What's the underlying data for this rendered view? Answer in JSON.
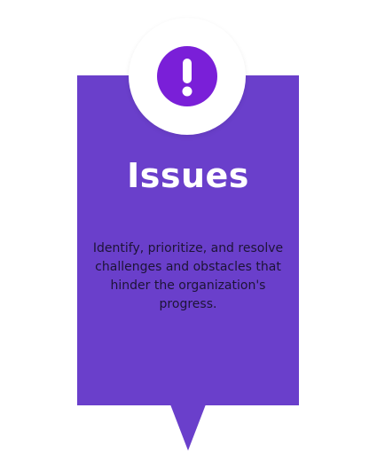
{
  "card": {
    "title": "Issues",
    "description": "Identify, prioritize, and resolve challenges and obstacles that hinder the organization's progress.",
    "icon": "exclamation-icon"
  },
  "colors": {
    "card_background": "#6a3fcb",
    "icon_background": "#7a1fd8",
    "title_text": "#ffffff",
    "description_text": "#1d1436",
    "badge_background": "#ffffff"
  }
}
